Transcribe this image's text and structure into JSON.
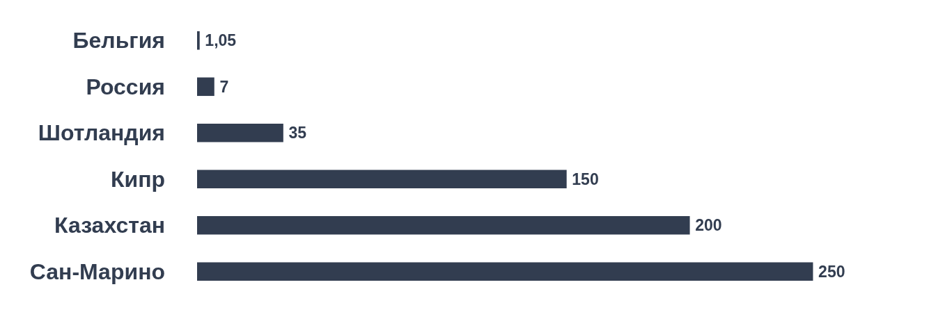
{
  "chart_data": {
    "type": "bar",
    "orientation": "horizontal",
    "categories": [
      "Бельгия",
      "Россия",
      "Шотландия",
      "Кипр",
      "Казахстан",
      "Сан-Марино"
    ],
    "values": [
      1.05,
      7,
      35,
      150,
      200,
      250
    ],
    "value_labels": [
      "1,05",
      "7",
      "35",
      "150",
      "200",
      "250"
    ],
    "color": "#323d50"
  }
}
